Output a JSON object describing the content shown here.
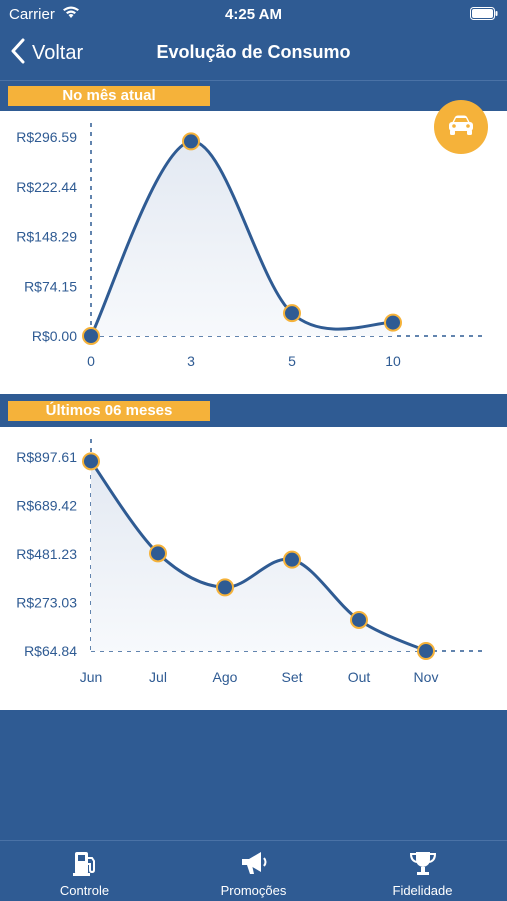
{
  "status_bar": {
    "carrier": "Carrier",
    "time": "4:25 AM"
  },
  "nav": {
    "back_label": "Voltar",
    "title": "Evolução de Consumo"
  },
  "sections": {
    "current_month": "No mês atual",
    "last_six_months": "Últimos 06 meses"
  },
  "tabs": [
    {
      "label": "Controle",
      "icon": "gas-pump-icon"
    },
    {
      "label": "Promoções",
      "icon": "megaphone-icon"
    },
    {
      "label": "Fidelidade",
      "icon": "trophy-icon"
    }
  ],
  "colors": {
    "primary": "#2f5b93",
    "accent": "#f5b23a",
    "panel": "#ffffff"
  },
  "chart_data": [
    {
      "type": "line",
      "categories": [
        "0",
        "3",
        "5",
        "10"
      ],
      "values": [
        0.0,
        290.0,
        34.0,
        20.0
      ],
      "yticks": [
        "R$0.00",
        "R$74.15",
        "R$148.29",
        "R$222.44",
        "R$296.59"
      ],
      "ylim": [
        0,
        296.59
      ],
      "smooth": true,
      "area_fill": true
    },
    {
      "type": "line",
      "categories": [
        "Jun",
        "Jul",
        "Ago",
        "Set",
        "Out",
        "Nov"
      ],
      "values": [
        879.0,
        484.0,
        338.0,
        457.0,
        198.0,
        64.84
      ],
      "yticks": [
        "R$64.84",
        "R$273.03",
        "R$481.23",
        "R$689.42",
        "R$897.61"
      ],
      "ylim": [
        64.84,
        897.61
      ],
      "smooth": true,
      "area_fill": true
    }
  ]
}
